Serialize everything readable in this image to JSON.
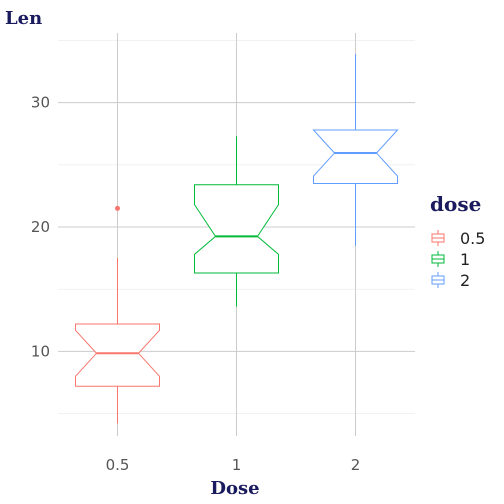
{
  "chart_data": {
    "type": "boxplot",
    "title": "",
    "xlabel": "Dose",
    "ylabel": "Len",
    "categories": [
      "0.5",
      "1",
      "2"
    ],
    "ylim": [
      3.2,
      35.6
    ],
    "yticks": [
      10,
      20,
      30
    ],
    "notched": true,
    "grid": true,
    "legend": {
      "title": "dose",
      "position": "right",
      "entries": [
        "0.5",
        "1",
        "2"
      ]
    },
    "series": [
      {
        "category": "0.5",
        "color": "#F8766D",
        "min": 4.2,
        "q1": 7.2,
        "notch_low": 8.0,
        "median": 9.85,
        "notch_high": 11.7,
        "q3": 12.2,
        "max": 17.5,
        "outliers": [
          21.5
        ]
      },
      {
        "category": "1",
        "color": "#00BA38",
        "min": 13.6,
        "q1": 16.3,
        "notch_low": 17.8,
        "median": 19.25,
        "notch_high": 21.8,
        "q3": 23.4,
        "max": 27.3,
        "outliers": []
      },
      {
        "category": "2",
        "color": "#619CFF",
        "min": 18.5,
        "q1": 23.5,
        "notch_low": 24.1,
        "median": 25.95,
        "notch_high": 27.8,
        "q3": 27.8,
        "max": 33.9,
        "outliers": []
      }
    ]
  }
}
